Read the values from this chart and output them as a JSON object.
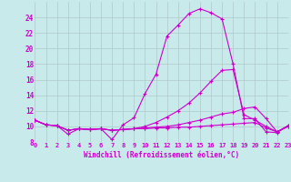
{
  "xlabel": "Windchill (Refroidissement éolien,°C)",
  "background_color": "#c8eaea",
  "grid_color": "#b0c8c8",
  "line_color": "#cc00cc",
  "x_ticks": [
    0,
    1,
    2,
    3,
    4,
    5,
    6,
    7,
    8,
    9,
    10,
    11,
    12,
    13,
    14,
    15,
    16,
    17,
    18,
    19,
    20,
    21,
    22,
    23
  ],
  "x_tick_labels": [
    "0",
    "1",
    "2",
    "3",
    "4",
    "5",
    "6",
    "7",
    "8",
    "9",
    "10",
    "11",
    "12",
    "13",
    "14",
    "15",
    "16",
    "17",
    "18",
    "19",
    "20",
    "21",
    "22",
    "23"
  ],
  "ylim": [
    8,
    26
  ],
  "xlim": [
    0,
    23
  ],
  "y_ticks": [
    8,
    10,
    12,
    14,
    16,
    18,
    20,
    22,
    24
  ],
  "line1_x": [
    0,
    1,
    2,
    3,
    4,
    5,
    6,
    7,
    8,
    9,
    10,
    11,
    12,
    13,
    14,
    15,
    16,
    17,
    18,
    19,
    20,
    21,
    22,
    23
  ],
  "line1_y": [
    10.8,
    10.2,
    10.1,
    9.0,
    9.7,
    9.6,
    9.7,
    8.3,
    10.2,
    11.1,
    14.2,
    16.7,
    21.6,
    23.0,
    24.5,
    25.1,
    24.6,
    23.8,
    18.0,
    11.0,
    11.0,
    9.3,
    9.2,
    10.1
  ],
  "line2_x": [
    0,
    1,
    2,
    3,
    4,
    5,
    6,
    7,
    8,
    9,
    10,
    11,
    12,
    13,
    14,
    15,
    16,
    17,
    18,
    19,
    20,
    21,
    22,
    23
  ],
  "line2_y": [
    10.8,
    10.2,
    10.1,
    9.5,
    9.7,
    9.6,
    9.7,
    9.5,
    9.6,
    9.7,
    10.0,
    10.5,
    11.2,
    12.0,
    13.0,
    14.3,
    15.8,
    17.2,
    17.3,
    11.5,
    10.8,
    10.0,
    9.3,
    10.1
  ],
  "line3_x": [
    0,
    1,
    2,
    3,
    4,
    5,
    6,
    7,
    8,
    9,
    10,
    11,
    12,
    13,
    14,
    15,
    16,
    17,
    18,
    19,
    20,
    21,
    22,
    23
  ],
  "line3_y": [
    10.8,
    10.2,
    10.1,
    9.5,
    9.7,
    9.6,
    9.7,
    9.5,
    9.6,
    9.7,
    9.8,
    9.9,
    10.0,
    10.2,
    10.5,
    10.8,
    11.2,
    11.6,
    11.8,
    12.3,
    12.5,
    11.0,
    9.3,
    10.0
  ],
  "line4_x": [
    0,
    1,
    2,
    3,
    4,
    5,
    6,
    7,
    8,
    9,
    10,
    11,
    12,
    13,
    14,
    15,
    16,
    17,
    18,
    19,
    20,
    21,
    22,
    23
  ],
  "line4_y": [
    10.8,
    10.2,
    10.1,
    9.5,
    9.7,
    9.6,
    9.7,
    9.5,
    9.6,
    9.7,
    9.7,
    9.8,
    9.8,
    9.9,
    9.9,
    10.0,
    10.1,
    10.2,
    10.3,
    10.4,
    10.5,
    9.8,
    9.3,
    10.0
  ]
}
